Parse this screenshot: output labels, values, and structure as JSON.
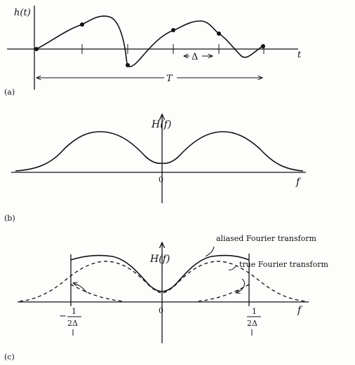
{
  "panel_a": {
    "y_label": "h(t)",
    "x_label": "t",
    "delta_label": "Δ",
    "T_label": "T",
    "caption": "(a)"
  },
  "panel_b": {
    "y_label": "H(f)",
    "x_label": "f",
    "origin_label": "0",
    "caption": "(b)"
  },
  "panel_c": {
    "y_label": "H(f)",
    "x_label": "f",
    "origin_label": "0",
    "aliased_label": "aliased Fourier transform",
    "true_label": "true Fourier transform",
    "left_minus": "−",
    "frac_num": "1",
    "frac_den": "2Δ",
    "caption": "(c)"
  }
}
